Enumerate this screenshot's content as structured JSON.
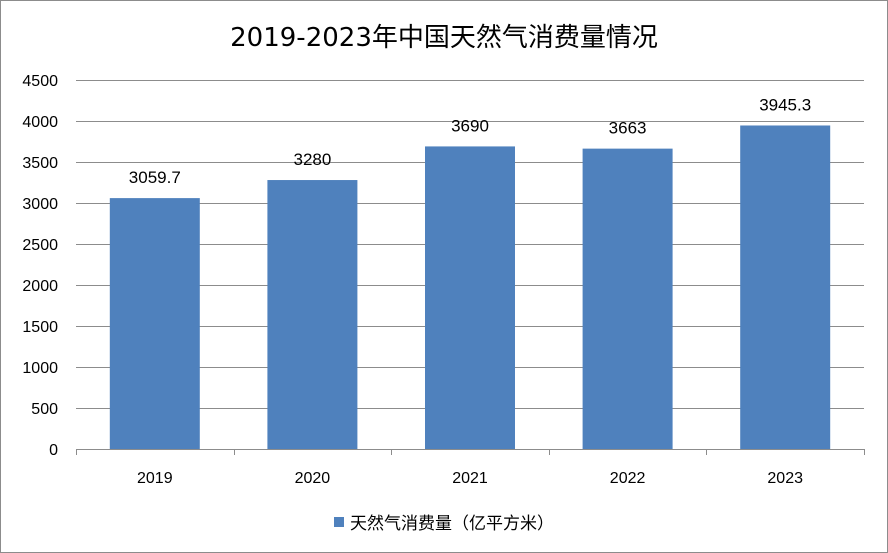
{
  "chart_data": {
    "type": "bar",
    "title": "2019-2023年中国天然气消费量情况",
    "categories": [
      "2019",
      "2020",
      "2021",
      "2022",
      "2023"
    ],
    "series": [
      {
        "name": "天然气消费量（亿平方米）",
        "values": [
          3059.7,
          3280,
          3690,
          3663,
          3945.3
        ],
        "data_labels": [
          "3059.7",
          "3280",
          "3690",
          "3663",
          "3945.3"
        ],
        "color": "#4f81bd"
      }
    ],
    "ylim": [
      0,
      4500
    ],
    "yticks": [
      0,
      500,
      1000,
      1500,
      2000,
      2500,
      3000,
      3500,
      4000,
      4500
    ],
    "grid": true,
    "legend_position": "bottom",
    "xlabel": "",
    "ylabel": ""
  }
}
